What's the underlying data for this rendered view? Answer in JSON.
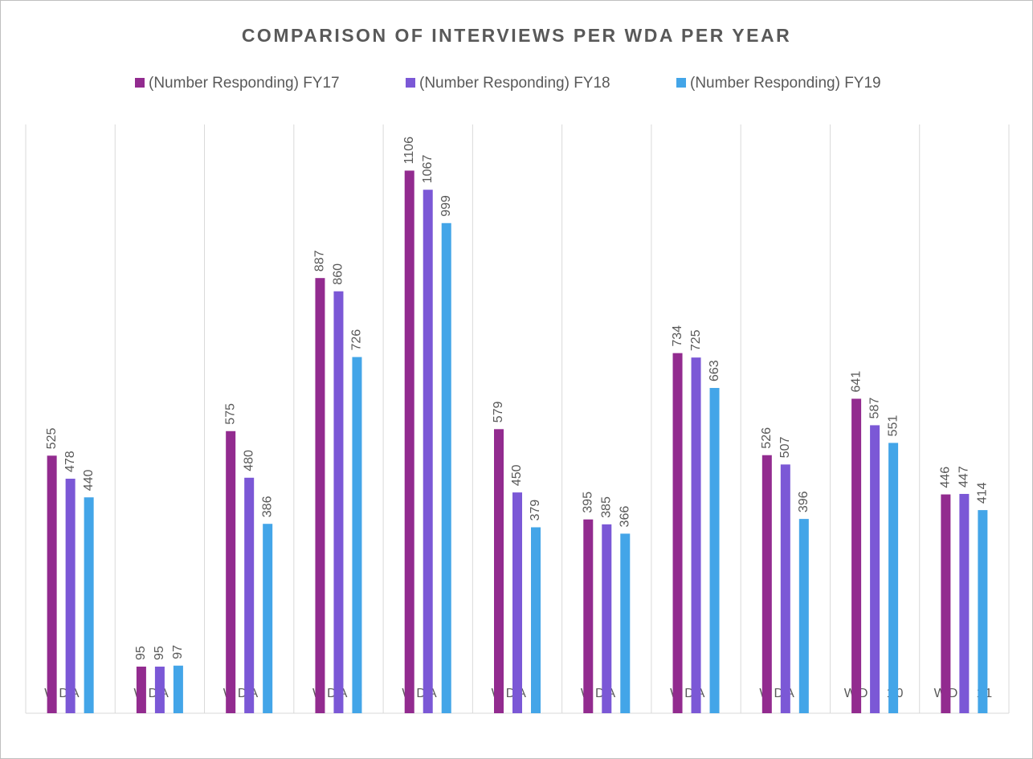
{
  "chart_data": {
    "type": "bar",
    "title": "COMPARISON OF INTERVIEWS PER WDA PER YEAR",
    "categories": [
      "WDA 1",
      "WDA 2",
      "WDA 3",
      "WDA 4",
      "WDA 5",
      "WDA 6",
      "WDA 7",
      "WDA 8",
      "WDA 9",
      "WDA 10",
      "WDA 11"
    ],
    "series": [
      {
        "name": "(Number Responding) FY17",
        "color": "#922b8f",
        "values": [
          525,
          95,
          575,
          887,
          1106,
          579,
          395,
          734,
          526,
          641,
          446
        ]
      },
      {
        "name": "(Number Responding) FY18",
        "color": "#7b58d6",
        "values": [
          478,
          95,
          480,
          860,
          1067,
          450,
          385,
          725,
          507,
          587,
          447
        ]
      },
      {
        "name": "(Number Responding) FY19",
        "color": "#43a5e8",
        "values": [
          440,
          97,
          386,
          726,
          999,
          379,
          366,
          663,
          396,
          551,
          414
        ]
      }
    ],
    "ylim": [
      0,
      1200
    ],
    "legend": "top"
  }
}
